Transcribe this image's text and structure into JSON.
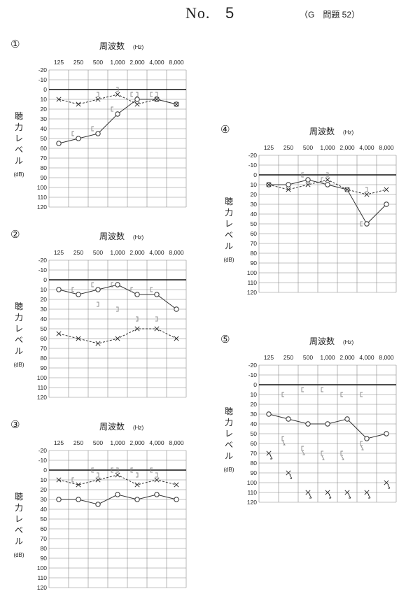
{
  "header": {
    "no_label": "No.",
    "number": "5",
    "tag": "（G　問題 52）"
  },
  "axis": {
    "x_title": "周波数",
    "x_unit": "(Hz)",
    "y_title": [
      "聴",
      "力",
      "レ",
      "ベ",
      "ル"
    ],
    "y_unit": "(dB)",
    "x_ticks": [
      "125",
      "250",
      "500",
      "1,000",
      "2,000",
      "4,000",
      "8,000"
    ],
    "y_ticks": [
      "-20",
      "-10",
      "0",
      "10",
      "20",
      "30",
      "40",
      "50",
      "60",
      "70",
      "80",
      "90",
      "100",
      "110",
      "120"
    ],
    "ylim": [
      -20,
      120
    ],
    "zero_line": 0,
    "grid": true
  },
  "colors": {
    "line": "#333333",
    "grid": "#888888",
    "bone": "#888888"
  },
  "chart_data": [
    {
      "type": "line",
      "number_label": "①",
      "x": [
        125,
        250,
        500,
        1000,
        2000,
        4000,
        8000
      ],
      "series": [
        {
          "marker": "circle",
          "style": "solid",
          "values": [
            55,
            50,
            45,
            25,
            10,
            10,
            15
          ]
        },
        {
          "marker": "cross",
          "style": "dashed",
          "values": [
            10,
            15,
            10,
            5,
            15,
            10,
            15
          ]
        },
        {
          "marker": "bone-bracket",
          "style": "none",
          "values": [
            null,
            45,
            40,
            20,
            5,
            5,
            null
          ]
        },
        {
          "marker": "bone-bracket-mirror",
          "style": "none",
          "values": [
            null,
            null,
            5,
            0,
            5,
            5,
            null
          ]
        }
      ]
    },
    {
      "type": "line",
      "number_label": "②",
      "x": [
        125,
        250,
        500,
        1000,
        2000,
        4000,
        8000
      ],
      "series": [
        {
          "marker": "circle",
          "style": "solid",
          "values": [
            10,
            15,
            10,
            5,
            15,
            15,
            30
          ]
        },
        {
          "marker": "cross",
          "style": "dashed",
          "values": [
            55,
            60,
            65,
            60,
            50,
            50,
            60
          ]
        },
        {
          "marker": "bone-bracket",
          "style": "none",
          "values": [
            null,
            10,
            5,
            5,
            10,
            10,
            null
          ]
        },
        {
          "marker": "bone-bracket-mirror",
          "style": "none",
          "values": [
            null,
            null,
            25,
            30,
            40,
            40,
            null
          ]
        }
      ]
    },
    {
      "type": "line",
      "number_label": "③",
      "x": [
        125,
        250,
        500,
        1000,
        2000,
        4000,
        8000
      ],
      "series": [
        {
          "marker": "circle",
          "style": "solid",
          "values": [
            30,
            30,
            35,
            25,
            30,
            25,
            30
          ]
        },
        {
          "marker": "cross",
          "style": "dashed",
          "values": [
            10,
            15,
            10,
            5,
            15,
            10,
            15
          ]
        },
        {
          "marker": "bone-bracket",
          "style": "none",
          "values": [
            null,
            10,
            0,
            0,
            0,
            0,
            null
          ]
        },
        {
          "marker": "bone-bracket-mirror",
          "style": "none",
          "values": [
            null,
            null,
            5,
            0,
            5,
            5,
            null
          ]
        }
      ]
    },
    {
      "type": "line",
      "number_label": "④",
      "x": [
        125,
        250,
        500,
        1000,
        2000,
        4000,
        8000
      ],
      "series": [
        {
          "marker": "circle",
          "style": "solid",
          "values": [
            10,
            10,
            5,
            10,
            15,
            50,
            30
          ]
        },
        {
          "marker": "cross",
          "style": "dashed",
          "values": [
            10,
            15,
            10,
            5,
            15,
            20,
            15
          ]
        },
        {
          "marker": "bone-bracket",
          "style": "none",
          "values": [
            null,
            null,
            0,
            5,
            null,
            50,
            null
          ]
        },
        {
          "marker": "bone-bracket-mirror",
          "style": "none",
          "values": [
            null,
            null,
            null,
            0,
            15,
            15,
            null
          ]
        }
      ]
    },
    {
      "type": "line",
      "number_label": "⑤",
      "x": [
        125,
        250,
        500,
        1000,
        2000,
        4000,
        8000
      ],
      "series": [
        {
          "marker": "circle",
          "style": "solid",
          "values": [
            30,
            35,
            40,
            40,
            35,
            55,
            50
          ]
        },
        {
          "marker": "cross-scaleout",
          "style": "none",
          "values": [
            70,
            90,
            110,
            110,
            110,
            110,
            100
          ]
        },
        {
          "marker": "bone-bracket",
          "style": "none",
          "values": [
            null,
            10,
            5,
            5,
            10,
            10,
            null
          ]
        },
        {
          "marker": "bone-bracket-scaleout",
          "style": "none",
          "values": [
            null,
            55,
            65,
            70,
            70,
            60,
            null
          ]
        }
      ]
    }
  ]
}
